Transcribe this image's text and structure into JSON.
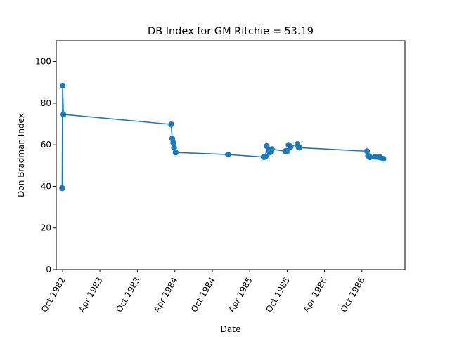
{
  "chart_data": {
    "type": "line",
    "title": "DB Index for GM Ritchie = 53.19",
    "xlabel": "Date",
    "ylabel": "Don Bradman Index",
    "ylim": [
      0,
      110
    ],
    "xlim": [
      "1982-08-31",
      "1987-04-29"
    ],
    "yticks": [
      0,
      20,
      40,
      60,
      80,
      100
    ],
    "xticks": [
      {
        "date": "1982-10-01",
        "label": "Oct 1982"
      },
      {
        "date": "1983-04-01",
        "label": "Apr 1983"
      },
      {
        "date": "1983-10-01",
        "label": "Oct 1983"
      },
      {
        "date": "1984-04-01",
        "label": "Apr 1984"
      },
      {
        "date": "1984-10-01",
        "label": "Oct 1984"
      },
      {
        "date": "1985-04-01",
        "label": "Apr 1985"
      },
      {
        "date": "1985-10-01",
        "label": "Oct 1985"
      },
      {
        "date": "1986-04-01",
        "label": "Apr 1986"
      },
      {
        "date": "1986-10-01",
        "label": "Oct 1986"
      }
    ],
    "series": [
      {
        "color": "#1f77b4",
        "points": [
          {
            "x": "1982-09-29",
            "y": 39.1
          },
          {
            "x": "1982-10-01",
            "y": 88.4
          },
          {
            "x": "1982-10-05",
            "y": 74.6
          },
          {
            "x": "1984-03-14",
            "y": 69.8
          },
          {
            "x": "1984-03-19",
            "y": 63.0
          },
          {
            "x": "1984-03-24",
            "y": 61.0
          },
          {
            "x": "1984-03-28",
            "y": 58.6
          },
          {
            "x": "1984-04-05",
            "y": 56.3
          },
          {
            "x": "1984-12-16",
            "y": 55.3
          },
          {
            "x": "1985-06-08",
            "y": 54.1
          },
          {
            "x": "1985-06-13",
            "y": 54.1
          },
          {
            "x": "1985-06-18",
            "y": 54.4
          },
          {
            "x": "1985-06-23",
            "y": 59.4
          },
          {
            "x": "1985-07-03",
            "y": 57.2
          },
          {
            "x": "1985-07-08",
            "y": 56.3
          },
          {
            "x": "1985-07-13",
            "y": 56.8
          },
          {
            "x": "1985-07-18",
            "y": 57.9
          },
          {
            "x": "1985-09-22",
            "y": 56.9
          },
          {
            "x": "1985-09-28",
            "y": 57.1
          },
          {
            "x": "1985-10-03",
            "y": 57.0
          },
          {
            "x": "1985-10-08",
            "y": 59.9
          },
          {
            "x": "1985-10-18",
            "y": 59.1
          },
          {
            "x": "1985-11-20",
            "y": 60.3
          },
          {
            "x": "1985-11-25",
            "y": 59.0
          },
          {
            "x": "1985-11-30",
            "y": 58.6
          },
          {
            "x": "1986-10-26",
            "y": 56.9
          },
          {
            "x": "1986-10-31",
            "y": 54.7
          },
          {
            "x": "1986-11-10",
            "y": 54.0
          },
          {
            "x": "1986-12-05",
            "y": 54.2
          },
          {
            "x": "1986-12-10",
            "y": 54.3
          },
          {
            "x": "1986-12-20",
            "y": 54.1
          },
          {
            "x": "1986-12-30",
            "y": 53.9
          },
          {
            "x": "1987-01-14",
            "y": 53.2
          }
        ]
      }
    ]
  }
}
